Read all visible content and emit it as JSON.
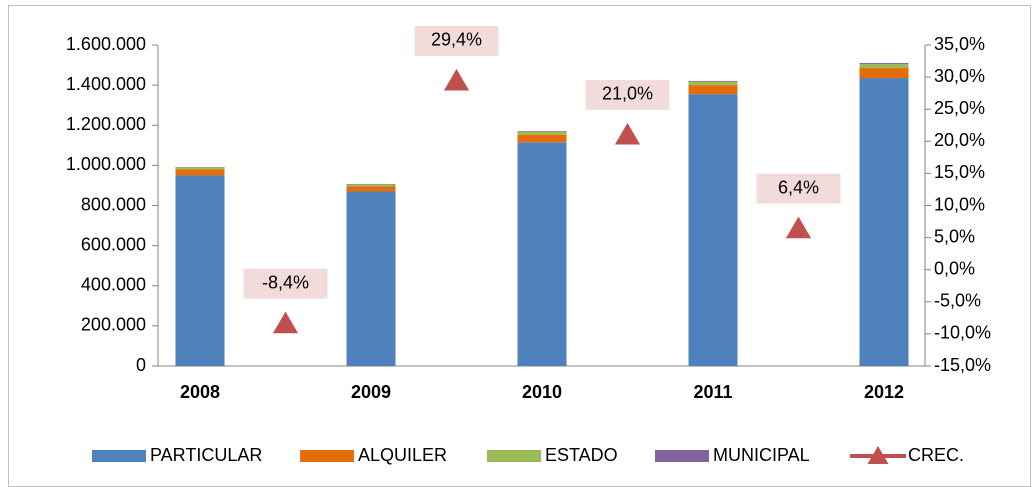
{
  "chart_data": {
    "type": "bar",
    "categories": [
      "2008",
      "2009",
      "2010",
      "2011",
      "2012"
    ],
    "series": [
      {
        "name": "PARTICULAR",
        "color": "#4f81bd",
        "values": [
          950000,
          870000,
          1115000,
          1355000,
          1435000
        ]
      },
      {
        "name": "ALQUILER",
        "color": "#e46c0a",
        "values": [
          30000,
          25000,
          38000,
          45000,
          50000
        ]
      },
      {
        "name": "ESTADO",
        "color": "#9bbb59",
        "values": [
          10000,
          10000,
          15000,
          18000,
          20000
        ]
      },
      {
        "name": "MUNICIPAL",
        "color": "#8064a2",
        "values": [
          2000,
          2000,
          3000,
          3000,
          5000
        ]
      },
      {
        "name": "CREC.",
        "color": "#c0504d",
        "axis": "y2",
        "type": "marker",
        "values": [
          null,
          -8.4,
          29.4,
          21.0,
          6.4
        ],
        "value_labels": [
          null,
          "-8,4%",
          "29,4%",
          "21,0%",
          "6,4%"
        ]
      }
    ],
    "stacked": true,
    "ylim": [
      0,
      1600000
    ],
    "yticks": [
      0,
      {
        "value": 200000,
        "label": "200.000"
      },
      {
        "value": 400000,
        "label": "400.000"
      },
      {
        "value": 600000,
        "label": "600.000"
      },
      {
        "value": 800000,
        "label": "800.000"
      },
      {
        "value": 1000000,
        "label": "1.000.000"
      },
      {
        "value": 1200000,
        "label": "1.200.000"
      },
      {
        "value": 1400000,
        "label": "1.400.000"
      },
      {
        "value": 1600000,
        "label": "1.600.000"
      }
    ],
    "y2lim": [
      -15,
      35
    ],
    "y2ticks": [
      {
        "value": -15,
        "label": "-15,0%"
      },
      {
        "value": -10,
        "label": "-10,0%"
      },
      {
        "value": -5,
        "label": "-5,0%"
      },
      {
        "value": 0,
        "label": "0,0%"
      },
      {
        "value": 5,
        "label": "5,0%"
      },
      {
        "value": 10,
        "label": "10,0%"
      },
      {
        "value": 15,
        "label": "15,0%"
      },
      {
        "value": 20,
        "label": "20,0%"
      },
      {
        "value": 25,
        "label": "25,0%"
      },
      {
        "value": 30,
        "label": "30,0%"
      },
      {
        "value": 35,
        "label": "35,0%"
      }
    ],
    "legend": "bottom",
    "grid": false
  }
}
